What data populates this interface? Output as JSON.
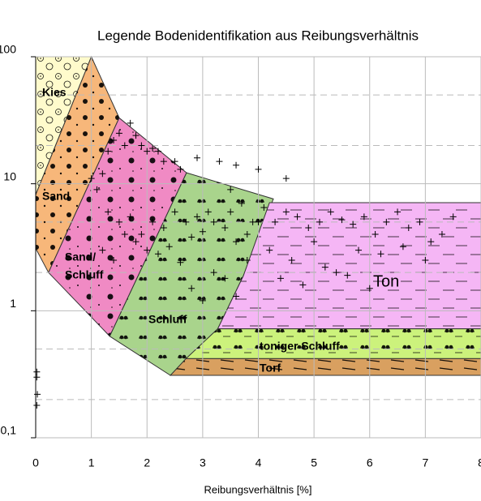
{
  "chart_data": {
    "type": "scatter",
    "title": "Legende Bodenidentifikation aus Reibungsverhältnis",
    "x_label": "Reibungsverhältnis [%]",
    "xlim": [
      0,
      8
    ],
    "xticks": [
      0,
      1,
      2,
      3,
      4,
      5,
      6,
      7,
      8
    ],
    "ylim": [
      0.1,
      100
    ],
    "log_y": true,
    "yticks": [
      {
        "value": 0.1,
        "label": "0,1"
      },
      1,
      10,
      100
    ],
    "minor_yticks": [
      0.2,
      0.5,
      2,
      5,
      20,
      50
    ],
    "grid": true,
    "regions": [
      {
        "label": "Kies",
        "color": "#fffbcc",
        "x": [
          0,
          1,
          0
        ],
        "y": [
          100,
          100,
          8.2
        ]
      },
      {
        "label": "Sand",
        "color": "#f7b77a",
        "x": [
          0,
          1,
          1.5,
          0.23,
          0
        ],
        "y": [
          8.2,
          100,
          33,
          2.0,
          3.1
        ]
      },
      {
        "label": [
          "Sand/",
          "Schluff"
        ],
        "color": "#f08ac4",
        "x": [
          1.5,
          2.71,
          1.33,
          0.23
        ],
        "y": [
          33,
          12.2,
          0.63,
          2.0
        ]
      },
      {
        "label": "Schluff",
        "color": "#a9d48c",
        "x": [
          2.71,
          4.27,
          3.73,
          3.27,
          2.42,
          1.33
        ],
        "y": [
          12.2,
          7.6,
          1.88,
          0.72,
          0.31,
          0.63
        ]
      },
      {
        "label": "Ton",
        "color": "#f5b6f5",
        "x": [
          4.2,
          8,
          8,
          3.27,
          3.73
        ],
        "y": [
          7.1,
          7.1,
          0.72,
          0.72,
          1.88
        ]
      },
      {
        "label": "toniger Schluff",
        "color": "#ccf27c",
        "x": [
          3.27,
          8,
          8,
          2.7
        ],
        "y": [
          0.72,
          0.72,
          0.42,
          0.42
        ]
      },
      {
        "label": "Torf",
        "color": "#d9a060",
        "x": [
          2.7,
          8,
          8,
          2.42
        ],
        "y": [
          0.42,
          0.42,
          0.31,
          0.31
        ]
      }
    ],
    "points": {
      "x": [
        0.02,
        0.02,
        0.03,
        0.02,
        1.0,
        1.1,
        1.2,
        1.3,
        1.4,
        1.5,
        1.6,
        1.7,
        1.8,
        1.9,
        2.0,
        2.1,
        2.2,
        2.3,
        2.5,
        2.6,
        1.3,
        1.5,
        1.7,
        1.9,
        2.1,
        2.3,
        2.5,
        2.7,
        2.9,
        3.1,
        1.2,
        1.4,
        1.6,
        1.8,
        2.0,
        2.2,
        2.4,
        2.6,
        2.8,
        3.0,
        3.2,
        3.4,
        3.6,
        3.8,
        4.0,
        2.8,
        3.0,
        3.2,
        3.4,
        3.6,
        3.8,
        3.5,
        3.7,
        3.9,
        4.1,
        4.3,
        4.5,
        4.7,
        4.9,
        5.1,
        5.3,
        5.5,
        5.7,
        5.9,
        6.1,
        6.3,
        6.5,
        6.7,
        6.9,
        7.1,
        7.3,
        7.5,
        4.2,
        4.6,
        5.0,
        5.4,
        5.8,
        6.2,
        6.6,
        7.0,
        4.4,
        4.8,
        5.2,
        5.6,
        6.0,
        3.6,
        4.0,
        4.5,
        3.5,
        2.9,
        3.3
      ],
      "y": [
        0.33,
        0.3,
        0.22,
        0.18,
        11,
        9,
        12,
        18,
        22,
        25,
        20,
        30,
        24,
        20,
        18,
        19,
        18,
        15,
        15,
        13,
        6,
        5,
        5.5,
        4,
        5,
        4.5,
        6,
        5,
        5.5,
        6,
        3,
        2.5,
        4,
        3.5,
        3,
        2.8,
        3.2,
        2.4,
        3.8,
        4.2,
        5,
        4.5,
        3.5,
        4,
        5,
        1.5,
        1.2,
        2,
        1.8,
        1.3,
        2.5,
        6,
        7,
        5,
        6.5,
        5,
        6,
        5.5,
        4.5,
        5,
        6,
        5.2,
        4.8,
        5.5,
        4,
        5,
        6,
        4.5,
        5,
        3.5,
        4,
        5.5,
        3,
        2.5,
        3.5,
        2,
        3,
        2.8,
        3.2,
        2.5,
        1.8,
        1.6,
        2.2,
        1.9,
        1.5,
        14,
        13,
        11,
        9,
        16,
        15
      ]
    }
  }
}
